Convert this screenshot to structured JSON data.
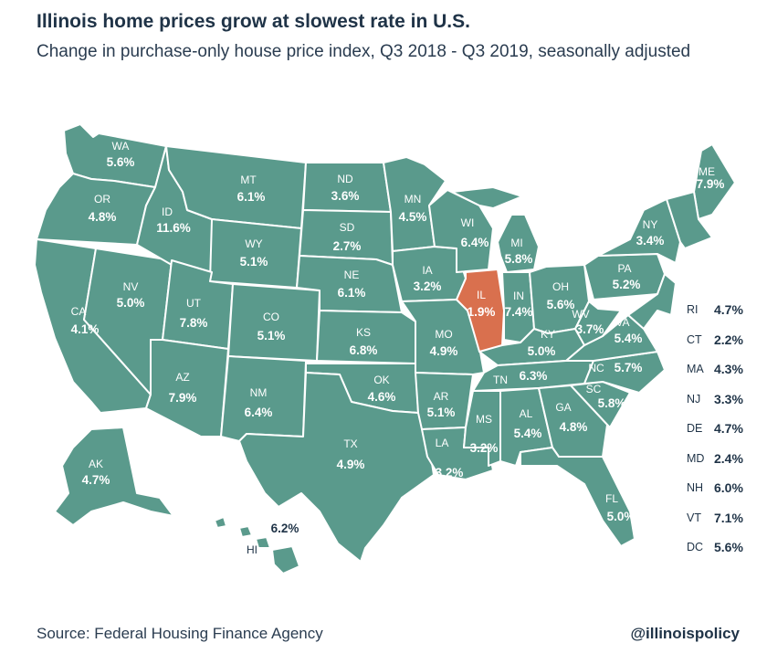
{
  "title": "Illinois home prices grow at slowest rate in U.S.",
  "subtitle": "Change in purchase-only house price index, Q3 2018 - Q3 2019, seasonally adjusted",
  "source": "Source: Federal Housing Finance Agency",
  "handle": "@illinoispolicy",
  "colors": {
    "default_state": "#5a9a8c",
    "highlight_state": "#d9704e",
    "text": "#1f3347"
  },
  "highlight": "IL",
  "states": {
    "WA": {
      "code": "WA",
      "value": "5.6%"
    },
    "OR": {
      "code": "OR",
      "value": "4.8%"
    },
    "CA": {
      "code": "CA",
      "value": "4.1%"
    },
    "NV": {
      "code": "NV",
      "value": "5.0%"
    },
    "ID": {
      "code": "ID",
      "value": "11.6%"
    },
    "MT": {
      "code": "MT",
      "value": "6.1%"
    },
    "WY": {
      "code": "WY",
      "value": "5.1%"
    },
    "UT": {
      "code": "UT",
      "value": "7.8%"
    },
    "AZ": {
      "code": "AZ",
      "value": "7.9%"
    },
    "CO": {
      "code": "CO",
      "value": "5.1%"
    },
    "NM": {
      "code": "NM",
      "value": "6.4%"
    },
    "ND": {
      "code": "ND",
      "value": "3.6%"
    },
    "SD": {
      "code": "SD",
      "value": "2.7%"
    },
    "NE": {
      "code": "NE",
      "value": "6.1%"
    },
    "KS": {
      "code": "KS",
      "value": "6.8%"
    },
    "OK": {
      "code": "OK",
      "value": "4.6%"
    },
    "TX": {
      "code": "TX",
      "value": "4.9%"
    },
    "MN": {
      "code": "MN",
      "value": "4.5%"
    },
    "IA": {
      "code": "IA",
      "value": "3.2%"
    },
    "MO": {
      "code": "MO",
      "value": "4.9%"
    },
    "AR": {
      "code": "AR",
      "value": "5.1%"
    },
    "LA": {
      "code": "LA",
      "value": "3.2%"
    },
    "WI": {
      "code": "WI",
      "value": "6.4%"
    },
    "IL": {
      "code": "IL",
      "value": "1.9%"
    },
    "MI": {
      "code": "MI",
      "value": "5.8%"
    },
    "IN": {
      "code": "IN",
      "value": "7.4%"
    },
    "OH": {
      "code": "OH",
      "value": "5.6%"
    },
    "KY": {
      "code": "KY",
      "value": "5.0%"
    },
    "TN": {
      "code": "TN",
      "value": "6.3%"
    },
    "MS": {
      "code": "MS",
      "value": "3.2%"
    },
    "AL": {
      "code": "AL",
      "value": "5.4%"
    },
    "GA": {
      "code": "GA",
      "value": "4.8%"
    },
    "FL": {
      "code": "FL",
      "value": "5.0%"
    },
    "SC": {
      "code": "SC",
      "value": "5.8%"
    },
    "NC": {
      "code": "NC",
      "value": "5.7%"
    },
    "VA": {
      "code": "VA",
      "value": "5.4%"
    },
    "WV": {
      "code": "WV",
      "value": "3.7%"
    },
    "PA": {
      "code": "PA",
      "value": "5.2%"
    },
    "NY": {
      "code": "NY",
      "value": "3.4%"
    },
    "ME": {
      "code": "ME",
      "value": "7.9%"
    },
    "AK": {
      "code": "AK",
      "value": "4.7%"
    },
    "HI": {
      "code": "HI",
      "value": "6.2%"
    }
  },
  "small_states": [
    {
      "code": "RI",
      "value": "4.7%"
    },
    {
      "code": "CT",
      "value": "2.2%"
    },
    {
      "code": "MA",
      "value": "4.3%"
    },
    {
      "code": "NJ",
      "value": "3.3%"
    },
    {
      "code": "DE",
      "value": "4.7%"
    },
    {
      "code": "MD",
      "value": "2.4%"
    },
    {
      "code": "NH",
      "value": "6.0%"
    },
    {
      "code": "VT",
      "value": "7.1%"
    },
    {
      "code": "DC",
      "value": "5.6%"
    }
  ]
}
